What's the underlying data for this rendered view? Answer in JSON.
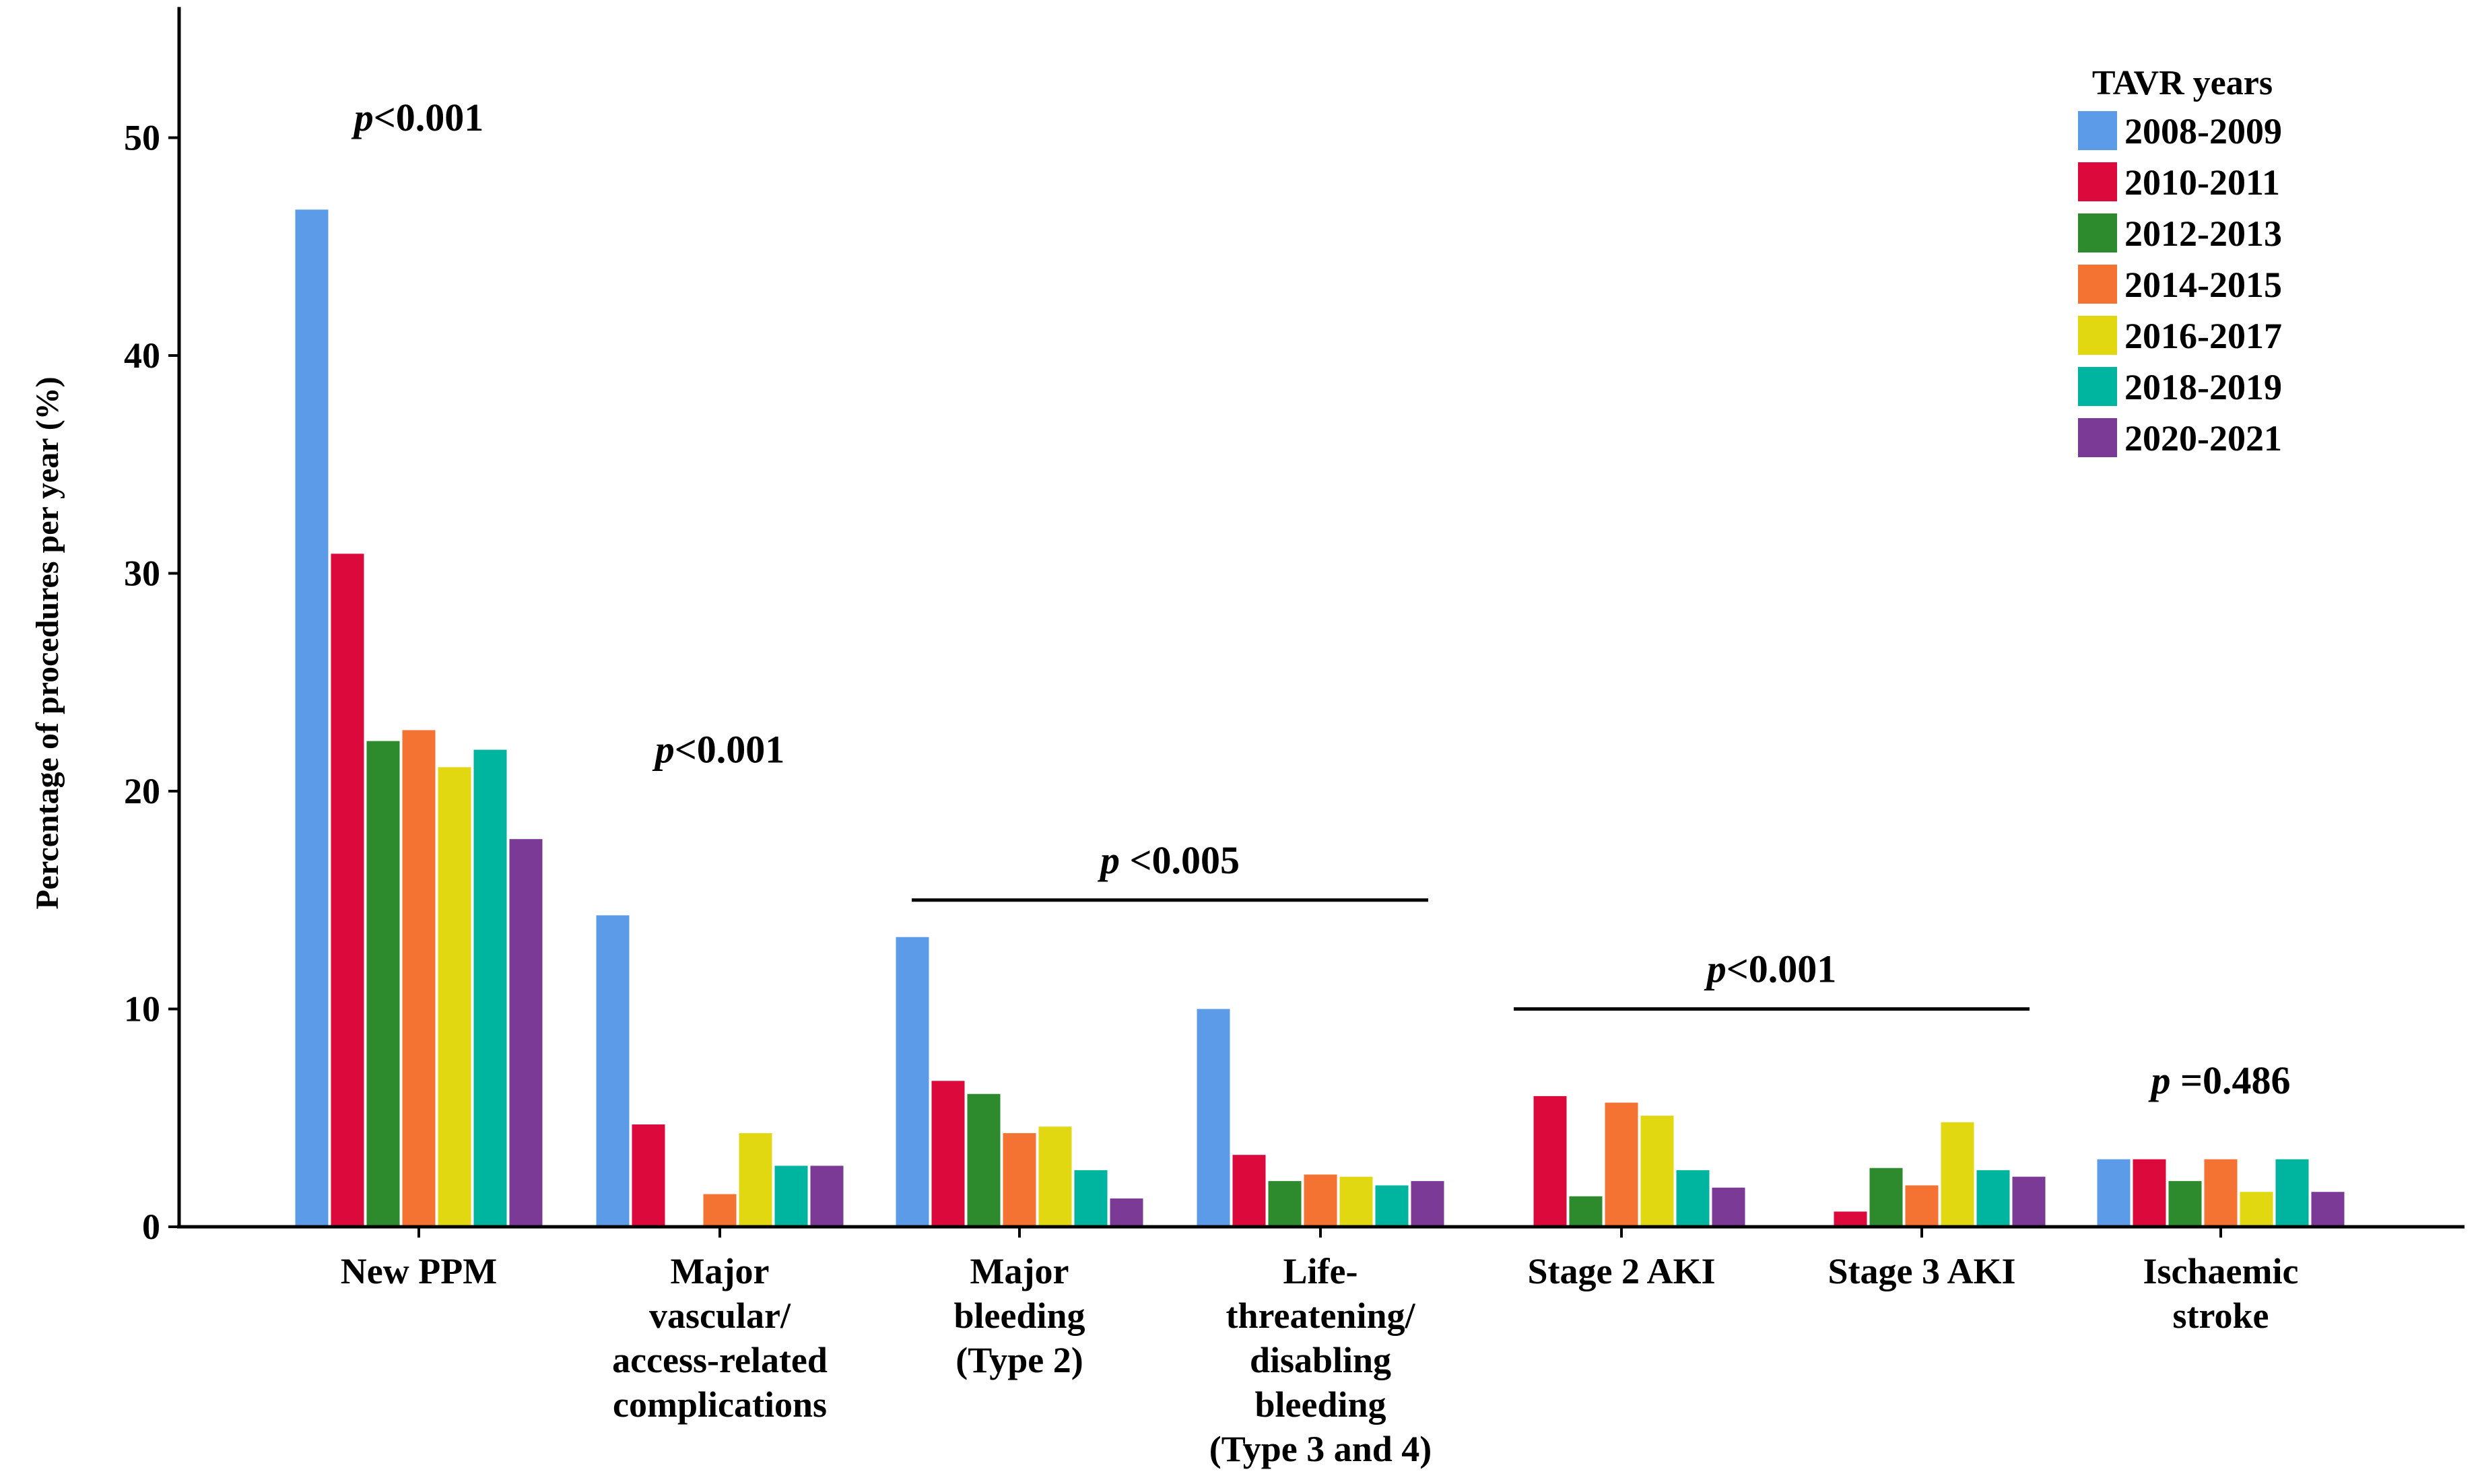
{
  "chart_data": {
    "type": "bar",
    "title": "",
    "xlabel": "",
    "ylabel": "Percentage of procedures per year (%)",
    "ylim": [
      0,
      56
    ],
    "yticks": [
      0,
      10,
      20,
      30,
      40,
      50
    ],
    "grid": false,
    "legend": {
      "title": "TAVR years",
      "position": "top-right"
    },
    "categories": [
      [
        "New PPM"
      ],
      [
        "Major",
        "vascular/",
        "access-related",
        "complications"
      ],
      [
        "Major",
        "bleeding",
        "(Type 2)"
      ],
      [
        "Life-",
        "threatening/",
        "disabling",
        "bleeding",
        "(Type 3 and 4)"
      ],
      [
        "Stage 2 AKI"
      ],
      [
        "Stage 3 AKI"
      ],
      [
        "Ischaemic",
        "stroke"
      ]
    ],
    "series": [
      {
        "name": "2008-2009",
        "color": "#5b9be8",
        "values": [
          46.7,
          14.3,
          13.3,
          10.0,
          0,
          0,
          3.1
        ]
      },
      {
        "name": "2010-2011",
        "color": "#dc0a3c",
        "values": [
          30.9,
          4.7,
          6.7,
          3.3,
          6.0,
          0.7,
          3.1
        ]
      },
      {
        "name": "2012-2013",
        "color": "#2d8a2d",
        "values": [
          22.3,
          0,
          6.1,
          2.1,
          1.4,
          2.7,
          2.1
        ]
      },
      {
        "name": "2014-2015",
        "color": "#f47232",
        "values": [
          22.8,
          1.5,
          4.3,
          2.4,
          5.7,
          1.9,
          3.1
        ]
      },
      {
        "name": "2016-2017",
        "color": "#e1d812",
        "values": [
          21.1,
          4.3,
          4.6,
          2.3,
          5.1,
          4.8,
          1.6
        ]
      },
      {
        "name": "2018-2019",
        "color": "#00b5a0",
        "values": [
          21.9,
          2.8,
          2.6,
          1.9,
          2.6,
          2.6,
          3.1
        ]
      },
      {
        "name": "2020-2021",
        "color": "#7a3a96",
        "values": [
          17.8,
          2.8,
          1.3,
          2.1,
          1.8,
          2.3,
          1.6
        ]
      }
    ],
    "annotations": [
      {
        "italic": "p",
        "text": "<0.001",
        "categories": [
          0
        ],
        "bracket": false,
        "y": 51
      },
      {
        "italic": "p",
        "text": "<0.001",
        "categories": [
          1
        ],
        "bracket": false,
        "y": 22
      },
      {
        "italic": "p",
        "text": " <0.005",
        "categories": [
          2,
          3
        ],
        "bracket": true,
        "y": 15
      },
      {
        "italic": "p",
        "text": "<0.001",
        "categories": [
          4,
          5
        ],
        "bracket": true,
        "y": 10
      },
      {
        "italic": "p",
        "text": " =0.486",
        "categories": [
          6
        ],
        "bracket": false,
        "y": 6.8
      }
    ]
  }
}
